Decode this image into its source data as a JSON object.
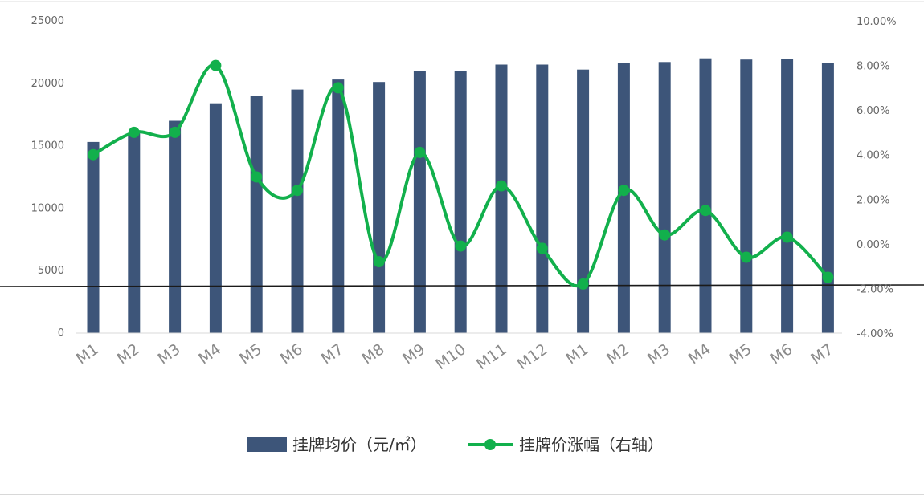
{
  "chart_data": {
    "type": "bar+line",
    "title": "",
    "categories": [
      "M1",
      "M2",
      "M3",
      "M4",
      "M5",
      "M6",
      "M7",
      "M8",
      "M9",
      "M10",
      "M11",
      "M12",
      "M1",
      "M2",
      "M3",
      "M4",
      "M5",
      "M6",
      "M7"
    ],
    "series": [
      {
        "name": "挂牌均价（元/㎡）",
        "type": "bar",
        "axis": "left",
        "color": "#3d5579",
        "values": [
          15300,
          16000,
          17000,
          18400,
          19000,
          19500,
          20300,
          20100,
          21000,
          21000,
          21500,
          21500,
          21100,
          21600,
          21700,
          22000,
          21900,
          21950,
          21650
        ]
      },
      {
        "name": "挂牌价涨幅（右轴）",
        "type": "line",
        "axis": "right",
        "color": "#12b04c",
        "values": [
          4.0,
          5.0,
          5.0,
          8.0,
          3.0,
          2.4,
          7.0,
          -0.8,
          4.1,
          -0.1,
          2.6,
          -0.2,
          -1.8,
          2.4,
          0.4,
          1.5,
          -0.6,
          0.3,
          -1.5
        ]
      }
    ],
    "left_axis": {
      "min": 0,
      "max": 25000,
      "ticks": [
        "0",
        "5000",
        "10000",
        "15000",
        "20000",
        "25000"
      ]
    },
    "right_axis": {
      "min": -4,
      "max": 10,
      "ticks": [
        "-4.00%",
        "-2.00%",
        "0.00%",
        "2.00%",
        "4.00%",
        "6.00%",
        "8.00%",
        "10.00%"
      ]
    },
    "xlabel": "",
    "ylabel": "",
    "grid": false,
    "legend_position": "bottom"
  }
}
